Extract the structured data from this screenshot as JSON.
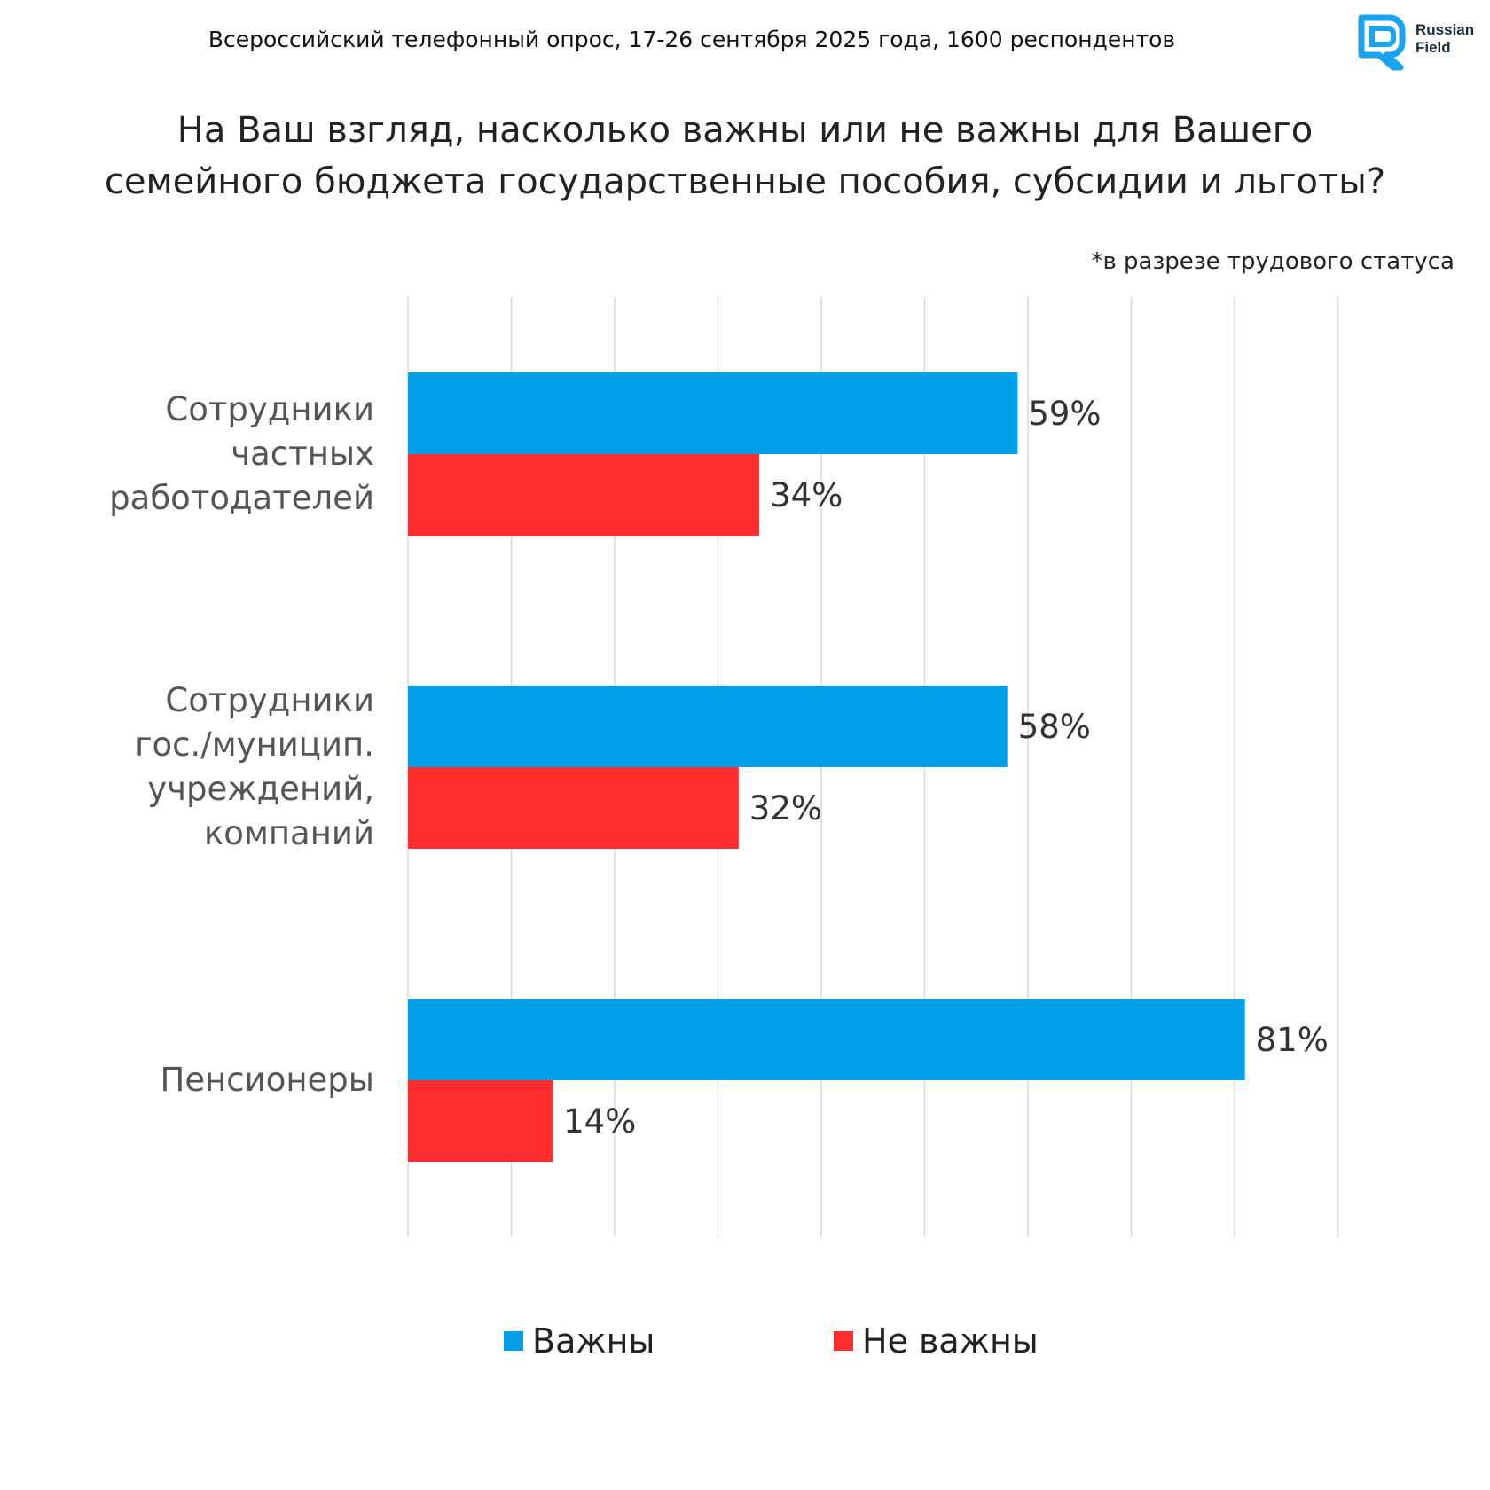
{
  "header": {
    "survey_info": "Всероссийский телефонный опрос, 17-26 сентября 2025 года, 1600 респондентов",
    "logo_line1": "Russian",
    "logo_line2": "Field"
  },
  "question_line1": "На Ваш взгляд, насколько важны или не важны для Вашего",
  "question_line2": "семейного бюджета государственные пособия, субсидии и льготы?",
  "note": "*в разрезе трудового статуса",
  "colors": {
    "important": "#009FE8",
    "not_important": "#FF2D2D",
    "grid": "#d9d9d9",
    "logo": "#1aa3ee"
  },
  "chart_data": {
    "type": "bar",
    "orientation": "horizontal",
    "categories": [
      [
        "Сотрудники",
        "частных",
        "работодателей"
      ],
      [
        "Сотрудники",
        "гос./муницип.",
        "учреждений,",
        "компаний"
      ],
      [
        "Пенсионеры"
      ]
    ],
    "series": [
      {
        "name": "Важны",
        "values": [
          59,
          58,
          81
        ],
        "labels": [
          "59%",
          "58%",
          "81%"
        ],
        "color": "#009FE8"
      },
      {
        "name": "Не важны",
        "values": [
          34,
          32,
          14
        ],
        "labels": [
          "34%",
          "32%",
          "14%"
        ],
        "color": "#FF2D2D"
      }
    ],
    "xlim": [
      0,
      80
    ],
    "grid": true,
    "legend": "bottom"
  }
}
